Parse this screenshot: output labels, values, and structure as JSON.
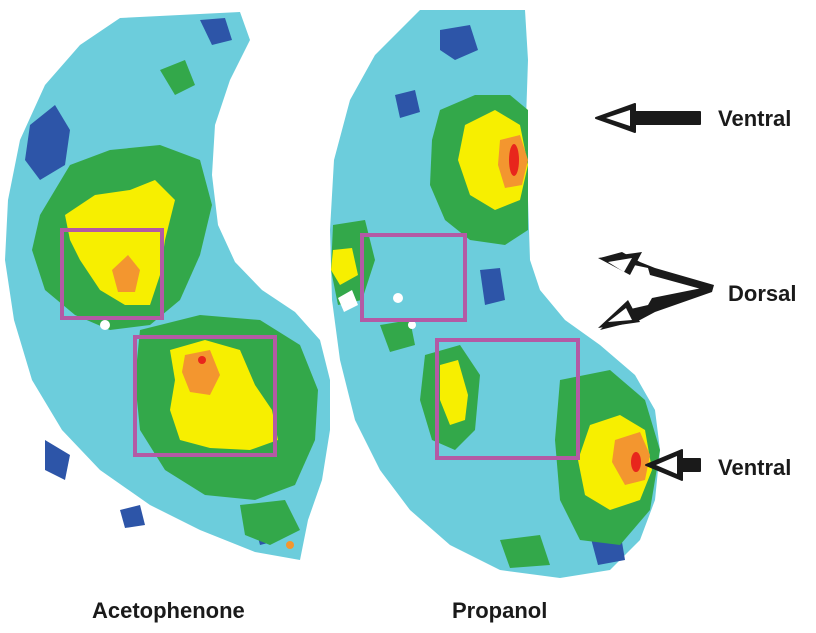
{
  "figure": {
    "panels": [
      {
        "id": "acetophenone",
        "caption": "Acetophenone"
      },
      {
        "id": "propanol",
        "caption": "Propanol"
      }
    ],
    "annotations": {
      "ventral_top": "Ventral",
      "dorsal": "Dorsal",
      "ventral_bottom": "Ventral"
    },
    "colors": {
      "background_tissue": "#6ccddc",
      "low": "#2d55a8",
      "mid": "#33a84a",
      "high": "#f7ef00",
      "higher": "#f3962f",
      "peak": "#e8261c",
      "roi_box": "#b35aa5",
      "arrow": "#1a1a1a"
    }
  }
}
